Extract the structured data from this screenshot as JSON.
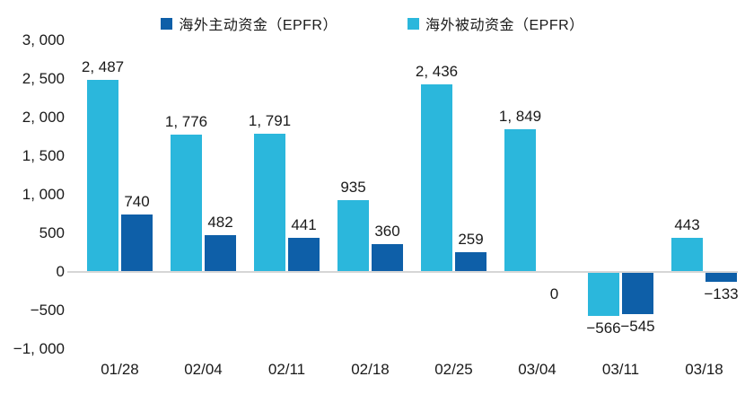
{
  "legend": [
    {
      "label": "海外主动资金（EPFR）",
      "color": "#0e5fa8"
    },
    {
      "label": "海外被动资金（EPFR）",
      "color": "#2bb7dc"
    }
  ],
  "chart_data": {
    "type": "bar",
    "title": "",
    "xlabel": "",
    "ylabel": "",
    "categories": [
      "01/28",
      "02/04",
      "02/11",
      "02/18",
      "02/25",
      "03/04",
      "03/11",
      "03/18"
    ],
    "series": [
      {
        "name": "海外被动资金（EPFR）",
        "color": "#2bb7dc",
        "values": [
          2487,
          1776,
          1791,
          935,
          2436,
          1849,
          -566,
          443
        ],
        "labels": [
          "2, 487",
          "1, 776",
          "1, 791",
          "935",
          "2, 436",
          "1, 849",
          "−566",
          "443"
        ]
      },
      {
        "name": "海外主动资金（EPFR）",
        "color": "#0e5fa8",
        "values": [
          740,
          482,
          441,
          360,
          259,
          0,
          -545,
          -133
        ],
        "labels": [
          "740",
          "482",
          "441",
          "360",
          "259",
          "0",
          "−545",
          "−133"
        ]
      }
    ],
    "y_axis": {
      "min": -1000,
      "max": 3000,
      "tick_step": 500,
      "tick_labels": [
        "3, 000",
        "2, 500",
        "2, 000",
        "1, 500",
        "1, 000",
        "500",
        "0",
        "−500",
        "−1, 000"
      ]
    },
    "legend_position": "top",
    "grid": false,
    "colors": {
      "text": "#1a1a1a",
      "axis_line": "#d6d6d6",
      "background": "#ffffff"
    }
  }
}
